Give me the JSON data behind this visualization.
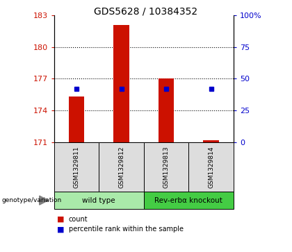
{
  "title": "GDS5628 / 10384352",
  "samples": [
    "GSM1329811",
    "GSM1329812",
    "GSM1329813",
    "GSM1329814"
  ],
  "count_values": [
    175.3,
    182.1,
    177.0,
    171.2
  ],
  "percentile_values": [
    42,
    42,
    42,
    42
  ],
  "ymin": 171,
  "ymax": 183,
  "yticks": [
    171,
    174,
    177,
    180,
    183
  ],
  "pct_yvals": [
    171,
    174,
    177,
    180,
    183
  ],
  "pct_labels": [
    "0",
    "25",
    "50",
    "75",
    "100%"
  ],
  "bar_color": "#cc1100",
  "dot_color": "#0000cc",
  "groups": [
    {
      "label": "wild type",
      "indices": [
        0,
        1
      ],
      "color": "#aaeaaa"
    },
    {
      "label": "Rev-erbα knockout",
      "indices": [
        2,
        3
      ],
      "color": "#44cc44"
    }
  ],
  "bg_color": "#dddddd",
  "bar_width": 0.35,
  "grid_yticks": [
    174,
    177,
    180
  ]
}
